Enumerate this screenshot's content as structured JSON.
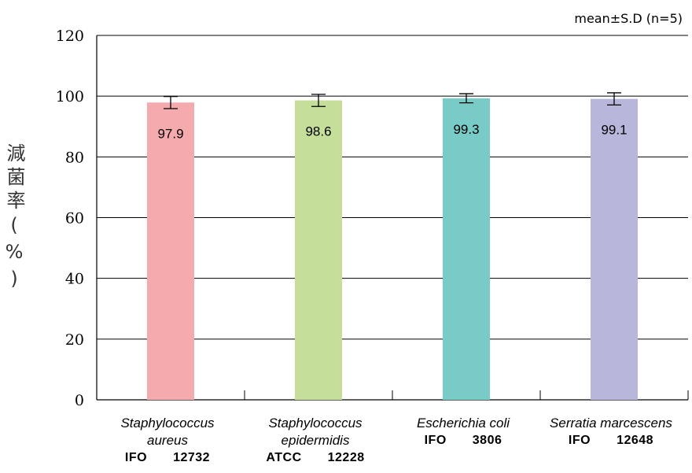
{
  "chart_data": {
    "type": "bar",
    "annotation": "mean±S.D (n=5)",
    "ylabel": "減菌率(%)",
    "ylim": [
      0,
      120
    ],
    "yticks": [
      0,
      20,
      40,
      60,
      80,
      100,
      120
    ],
    "categories": [
      {
        "name_line1": "Staphylococcus",
        "name_line2": "aureus",
        "strain": "IFO　　12732"
      },
      {
        "name_line1": "Staphylococcus",
        "name_line2": "epidermidis",
        "strain": "ATCC　　12228"
      },
      {
        "name_line1": "Escherichia coli",
        "name_line2": "",
        "strain": "IFO　　3806"
      },
      {
        "name_line1": "Serratia marcescens",
        "name_line2": "",
        "strain": "IFO　　12648"
      }
    ],
    "values": [
      97.9,
      98.6,
      99.3,
      99.1
    ],
    "value_labels": [
      "97.9",
      "98.6",
      "99.3",
      "99.1"
    ],
    "error": [
      2.0,
      2.0,
      1.5,
      2.0
    ],
    "colors": [
      "#f5aaad",
      "#c5de99",
      "#79cbc7",
      "#b8b6db"
    ]
  }
}
